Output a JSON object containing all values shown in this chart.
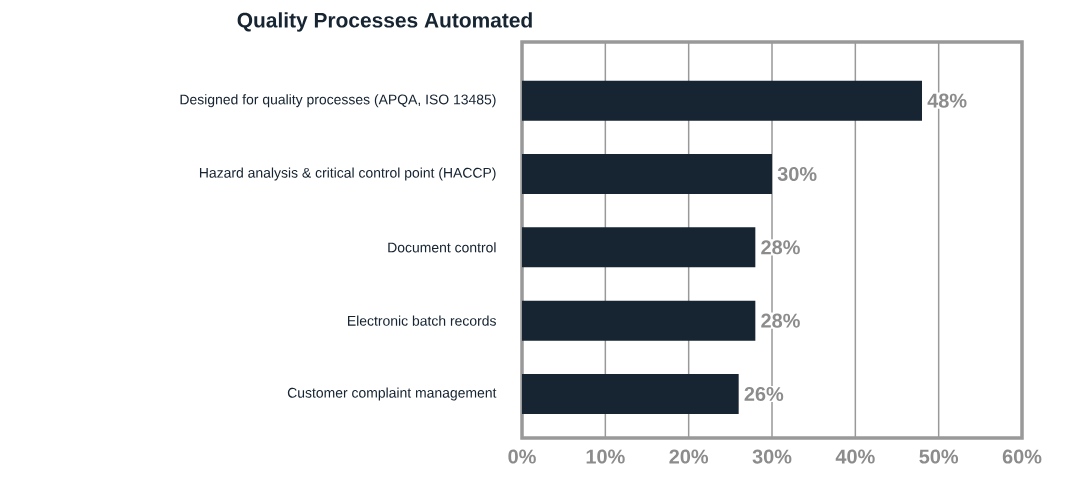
{
  "chart_data": {
    "type": "bar",
    "orientation": "horizontal",
    "title": "Quality Processes Automated",
    "categories": [
      "Designed for quality processes (APQA, ISO 13485)",
      "Hazard analysis & critical control point (HACCP)",
      "Document control",
      "Electronic batch records",
      "Customer complaint management"
    ],
    "values": [
      48,
      30,
      28,
      28,
      26
    ],
    "value_labels": [
      "48%",
      "30%",
      "28%",
      "28%",
      "26%"
    ],
    "color": "#172533",
    "xlim": [
      0,
      60
    ],
    "xticks": [
      {
        "value": 0,
        "label": "0%"
      },
      {
        "value": 10,
        "label": "10%"
      },
      {
        "value": 20,
        "label": "20%"
      },
      {
        "value": 30,
        "label": "30%"
      },
      {
        "value": 40,
        "label": "40%"
      },
      {
        "value": 50,
        "label": "50%"
      },
      {
        "value": 60,
        "label": "60%"
      }
    ],
    "grid": "x"
  }
}
